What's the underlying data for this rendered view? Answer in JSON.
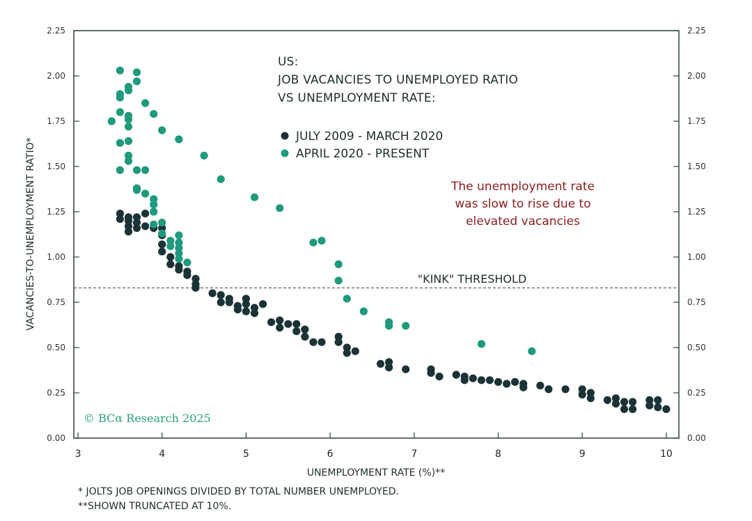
{
  "chart_data": {
    "type": "scatter",
    "title_lines": [
      "US:",
      "JOB VACANCIES TO UNEMPLOYED RATIO",
      "VS UNEMPLOYMENT RATE:"
    ],
    "xlabel": "UNEMPLOYMENT RATE (%)**",
    "ylabel": "VACANCIES-TO-UNEMPLOYMENT RATIO*",
    "xlim": [
      2.95,
      10.15
    ],
    "ylim": [
      0,
      2.25
    ],
    "x_ticks": [
      3,
      4,
      5,
      6,
      7,
      8,
      9,
      10
    ],
    "y_ticks": [
      "0.00",
      "0.25",
      "0.50",
      "0.75",
      "1.00",
      "1.25",
      "1.50",
      "1.75",
      "2.00",
      "2.25"
    ],
    "y_ticks_right": true,
    "grid": false,
    "legend_placement": "top-center",
    "threshold": {
      "label": "\"KINK\" THRESHOLD",
      "y": 0.83,
      "style": "dashed"
    },
    "annotation": [
      "The unemployment rate",
      "was slow to rise due to",
      "elevated vacancies"
    ],
    "series": [
      {
        "name": "JULY 2009 - MARCH 2020",
        "color": "#1b3336",
        "points": [
          [
            3.5,
            1.24
          ],
          [
            3.5,
            1.21
          ],
          [
            3.6,
            1.22
          ],
          [
            3.6,
            1.2
          ],
          [
            3.6,
            1.17
          ],
          [
            3.6,
            1.14
          ],
          [
            3.7,
            1.22
          ],
          [
            3.7,
            1.19
          ],
          [
            3.7,
            1.16
          ],
          [
            3.8,
            1.24
          ],
          [
            3.8,
            1.17
          ],
          [
            3.9,
            1.16
          ],
          [
            4.0,
            1.16
          ],
          [
            4.0,
            1.12
          ],
          [
            4.0,
            1.07
          ],
          [
            4.0,
            1.03
          ],
          [
            4.1,
            1.0
          ],
          [
            4.1,
            0.96
          ],
          [
            4.2,
            0.95
          ],
          [
            4.2,
            0.93
          ],
          [
            4.3,
            0.92
          ],
          [
            4.3,
            0.9
          ],
          [
            4.4,
            0.88
          ],
          [
            4.4,
            0.85
          ],
          [
            4.4,
            0.83
          ],
          [
            4.6,
            0.8
          ],
          [
            4.7,
            0.79
          ],
          [
            4.7,
            0.75
          ],
          [
            4.8,
            0.77
          ],
          [
            4.8,
            0.75
          ],
          [
            4.9,
            0.73
          ],
          [
            4.9,
            0.71
          ],
          [
            5.0,
            0.77
          ],
          [
            5.0,
            0.74
          ],
          [
            5.0,
            0.7
          ],
          [
            5.1,
            0.72
          ],
          [
            5.1,
            0.69
          ],
          [
            5.2,
            0.74
          ],
          [
            5.3,
            0.64
          ],
          [
            5.4,
            0.65
          ],
          [
            5.4,
            0.61
          ],
          [
            5.5,
            0.63
          ],
          [
            5.6,
            0.63
          ],
          [
            5.6,
            0.59
          ],
          [
            5.7,
            0.6
          ],
          [
            5.7,
            0.56
          ],
          [
            5.8,
            0.53
          ],
          [
            5.9,
            0.53
          ],
          [
            6.1,
            0.56
          ],
          [
            6.1,
            0.53
          ],
          [
            6.2,
            0.5
          ],
          [
            6.2,
            0.47
          ],
          [
            6.3,
            0.48
          ],
          [
            6.6,
            0.41
          ],
          [
            6.7,
            0.42
          ],
          [
            6.7,
            0.39
          ],
          [
            6.9,
            0.38
          ],
          [
            7.2,
            0.38
          ],
          [
            7.2,
            0.36
          ],
          [
            7.3,
            0.34
          ],
          [
            7.5,
            0.35
          ],
          [
            7.6,
            0.34
          ],
          [
            7.6,
            0.32
          ],
          [
            7.7,
            0.33
          ],
          [
            7.8,
            0.32
          ],
          [
            7.9,
            0.32
          ],
          [
            8.0,
            0.31
          ],
          [
            8.1,
            0.3
          ],
          [
            8.2,
            0.31
          ],
          [
            8.3,
            0.3
          ],
          [
            8.3,
            0.28
          ],
          [
            8.5,
            0.29
          ],
          [
            8.6,
            0.27
          ],
          [
            8.8,
            0.27
          ],
          [
            9.0,
            0.27
          ],
          [
            9.0,
            0.24
          ],
          [
            9.1,
            0.25
          ],
          [
            9.1,
            0.22
          ],
          [
            9.3,
            0.21
          ],
          [
            9.4,
            0.22
          ],
          [
            9.4,
            0.19
          ],
          [
            9.5,
            0.2
          ],
          [
            9.5,
            0.16
          ],
          [
            9.6,
            0.2
          ],
          [
            9.6,
            0.16
          ],
          [
            9.8,
            0.21
          ],
          [
            9.8,
            0.18
          ],
          [
            9.9,
            0.21
          ],
          [
            9.9,
            0.17
          ],
          [
            10.0,
            0.16
          ]
        ]
      },
      {
        "name": "APRIL 2020 - PRESENT",
        "color": "#1f9a7d",
        "points": [
          [
            3.4,
            1.75
          ],
          [
            3.5,
            2.03
          ],
          [
            3.5,
            1.9
          ],
          [
            3.5,
            1.88
          ],
          [
            3.5,
            1.8
          ],
          [
            3.5,
            1.63
          ],
          [
            3.5,
            1.48
          ],
          [
            3.6,
            1.94
          ],
          [
            3.6,
            1.92
          ],
          [
            3.6,
            1.78
          ],
          [
            3.6,
            1.76
          ],
          [
            3.6,
            1.72
          ],
          [
            3.6,
            1.64
          ],
          [
            3.6,
            1.56
          ],
          [
            3.6,
            1.53
          ],
          [
            3.7,
            2.02
          ],
          [
            3.7,
            1.97
          ],
          [
            3.7,
            1.48
          ],
          [
            3.7,
            1.38
          ],
          [
            3.7,
            1.37
          ],
          [
            3.8,
            1.85
          ],
          [
            3.8,
            1.48
          ],
          [
            3.8,
            1.35
          ],
          [
            3.9,
            1.79
          ],
          [
            3.9,
            1.32
          ],
          [
            3.9,
            1.29
          ],
          [
            3.9,
            1.25
          ],
          [
            3.9,
            1.18
          ],
          [
            4.0,
            1.7
          ],
          [
            4.0,
            1.19
          ],
          [
            4.0,
            1.13
          ],
          [
            4.1,
            1.09
          ],
          [
            4.1,
            1.06
          ],
          [
            4.2,
            1.65
          ],
          [
            4.2,
            1.12
          ],
          [
            4.2,
            1.08
          ],
          [
            4.2,
            1.05
          ],
          [
            4.2,
            1.02
          ],
          [
            4.2,
            0.99
          ],
          [
            4.3,
            0.97
          ],
          [
            4.5,
            1.56
          ],
          [
            4.7,
            1.43
          ],
          [
            5.1,
            1.33
          ],
          [
            5.4,
            1.27
          ],
          [
            5.8,
            1.08
          ],
          [
            5.9,
            1.09
          ],
          [
            6.1,
            0.96
          ],
          [
            6.1,
            0.87
          ],
          [
            6.2,
            0.77
          ],
          [
            6.4,
            0.7
          ],
          [
            6.7,
            0.64
          ],
          [
            6.7,
            0.62
          ],
          [
            6.9,
            0.62
          ],
          [
            7.8,
            0.52
          ],
          [
            8.4,
            0.48
          ]
        ]
      }
    ]
  },
  "footnotes": {
    "note1": "* JOLTS JOB OPENINGS DIVIDED BY TOTAL NUMBER UNEMPLOYED.",
    "note2": "**SHOWN TRUNCATED AT 10%."
  },
  "credit": "© BCα Research 2025"
}
